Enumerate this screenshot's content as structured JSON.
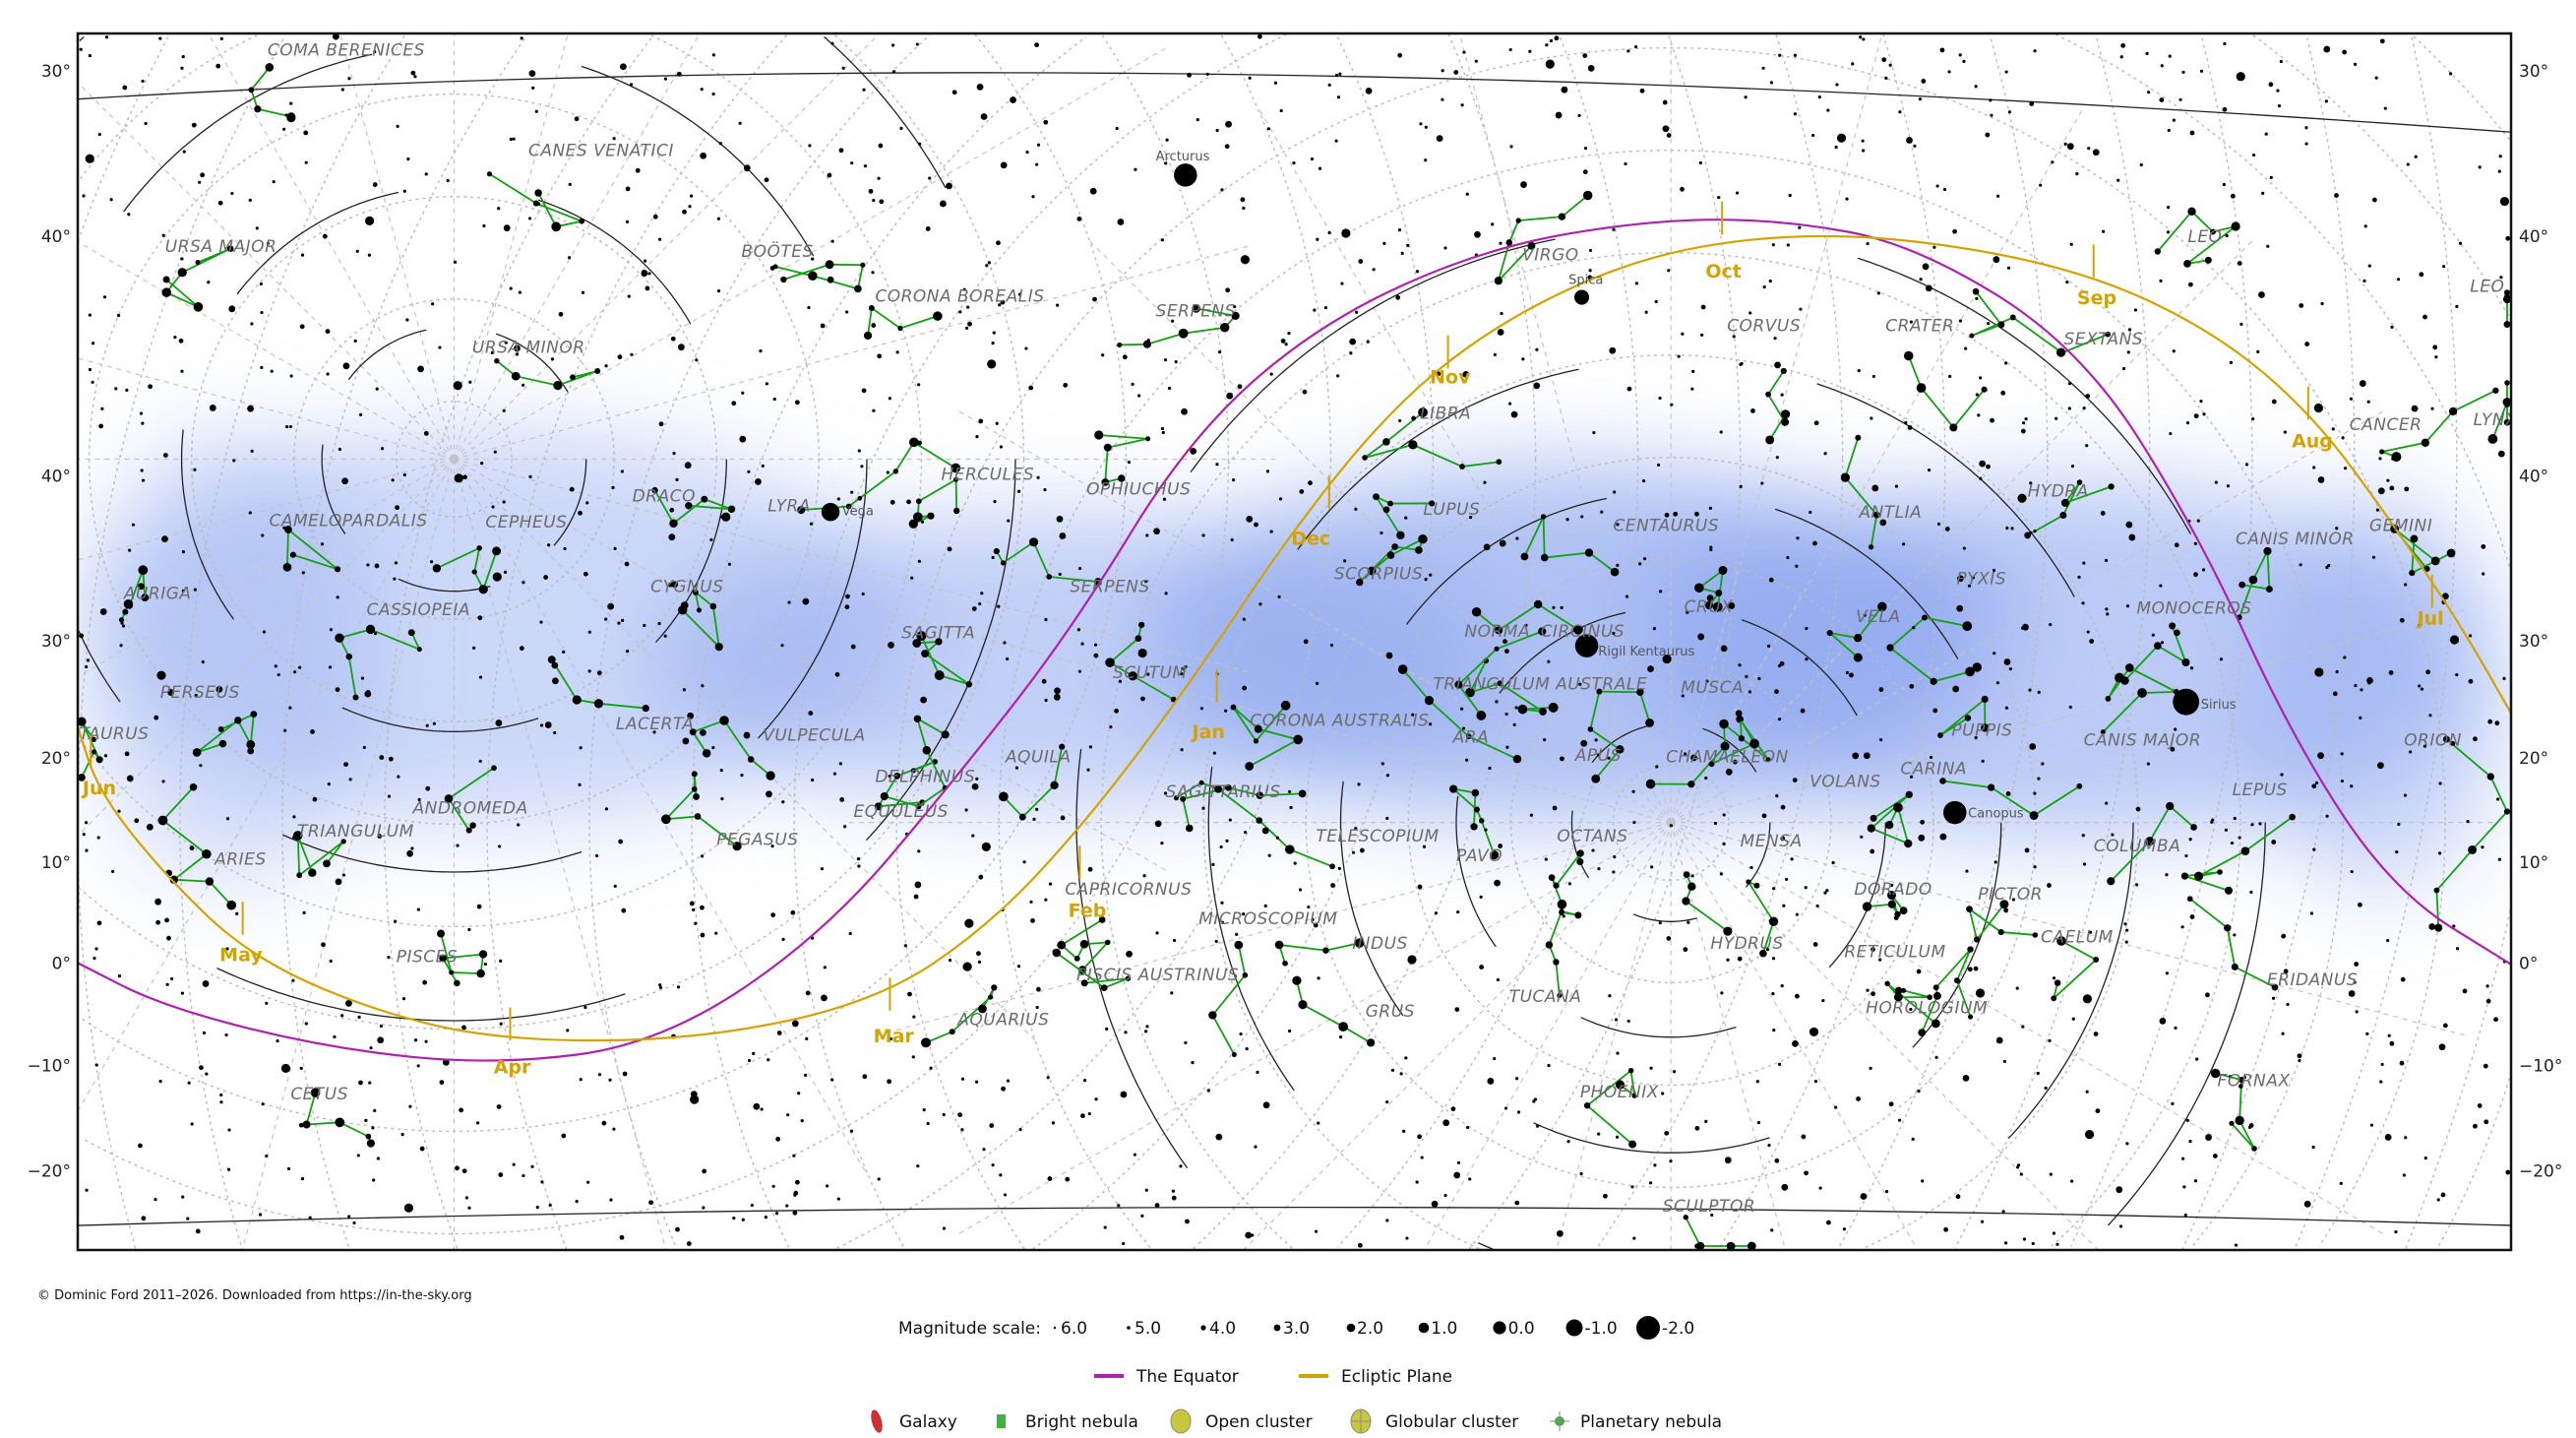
{
  "copyright": "© Dominic Ford 2011–2026. Downloaded from https://in-the-sky.org",
  "axis": {
    "left_labels": [
      "30°",
      "40°",
      "40°",
      "30°",
      "20°",
      "10°",
      "0°",
      "−10°",
      "−20°"
    ],
    "right_labels": [
      "30°",
      "40°",
      "40°",
      "30°",
      "20°",
      "10°",
      "0°",
      "−10°",
      "−20°"
    ]
  },
  "constellations": [
    "COMA BERENICES",
    "CANES VENATICI",
    "URSA MAJOR",
    "BOÖTES",
    "CORONA BOREALIS",
    "URSA MINOR",
    "SERPENS",
    "VIRGO",
    "CORVUS",
    "CRATER",
    "SEXTANS",
    "LEO",
    "LEO MINOR",
    "LIBRA",
    "CANCER",
    "LYNX",
    "HYDRA",
    "DRACO",
    "LYRA",
    "HERCULES",
    "OPHIUCHUS",
    "CAMELOPARDALIS",
    "CEPHEUS",
    "LUPUS",
    "CENTAURUS",
    "ANTLIA",
    "CANIS MINOR",
    "GEMINI",
    "AURIGA",
    "CASSIOPEIA",
    "CYGNUS",
    "SERPENS",
    "SCORPIUS",
    "PYXIS",
    "NORMA",
    "CIRCINUS",
    "CRUX",
    "VELA",
    "MONOCEROS",
    "SAGITTA",
    "PERSEUS",
    "SCUTUM",
    "TRIANGULUM AUSTRALE",
    "MUSCA",
    "LACERTA",
    "VULPECULA",
    "CORONA AUSTRALIS",
    "ARA",
    "PUPPIS",
    "CANIS MAJOR",
    "ORION",
    "TAURUS",
    "APUS",
    "CHAMAELEON",
    "DELPHINUS",
    "AQUILA",
    "CARINA",
    "VOLANS",
    "LEPUS",
    "EQUULEUS",
    "SAGITTARIUS",
    "ANDROMEDA",
    "TRIANGULUM",
    "PEGASUS",
    "TELESCOPIUM",
    "PAVO",
    "OCTANS",
    "MENSA",
    "COLUMBA",
    "ARIES",
    "DORADO",
    "PICTOR",
    "CAPRICORNUS",
    "MICROSCOPIUM",
    "INDUS",
    "RETICULUM",
    "CAELUM",
    "HYDRUS",
    "PISCES",
    "PISCIS AUSTRINUS",
    "ERIDANUS",
    "AQUARIUS",
    "GRUS",
    "TUCANA",
    "HOROLOGIUM",
    "FORNAX",
    "CETUS",
    "PHOENIX",
    "SCULPTOR"
  ],
  "bright_stars": [
    "Arcturus",
    "Spica",
    "Vega",
    "Rigil Kentaurus",
    "Sirius",
    "Canopus"
  ],
  "months": [
    "Oct",
    "Sep",
    "Nov",
    "Aug",
    "Dec",
    "Jul",
    "Jan",
    "Jun",
    "Feb",
    "May",
    "Mar",
    "Apr"
  ],
  "colors": {
    "equator": "#b020b0",
    "ecliptic": "#d4a300",
    "constellation_lines": "#10a010",
    "milky_way": "#8fa8f0",
    "galaxy": "#c83232",
    "bright_nebula": "#3cb43c",
    "open_cluster": "#c8c83c",
    "globular_cluster": "#c8c83c",
    "planetary_nebula": "#3cb43c"
  },
  "legend": {
    "magnitude_title": "Magnitude scale:",
    "magnitudes": [
      "6.0",
      "5.0",
      "4.0",
      "3.0",
      "2.0",
      "1.0",
      "0.0",
      "-1.0",
      "-2.0"
    ],
    "lines": [
      {
        "label": "The Equator",
        "icon": "magenta-line"
      },
      {
        "label": "Ecliptic Plane",
        "icon": "gold-line"
      }
    ],
    "objects": [
      {
        "label": "Galaxy",
        "icon": "galaxy-icon"
      },
      {
        "label": "Bright nebula",
        "icon": "bright-nebula-icon"
      },
      {
        "label": "Open cluster",
        "icon": "open-cluster-icon"
      },
      {
        "label": "Globular cluster",
        "icon": "globular-cluster-icon"
      },
      {
        "label": "Planetary nebula",
        "icon": "planetary-nebula-icon"
      }
    ]
  }
}
